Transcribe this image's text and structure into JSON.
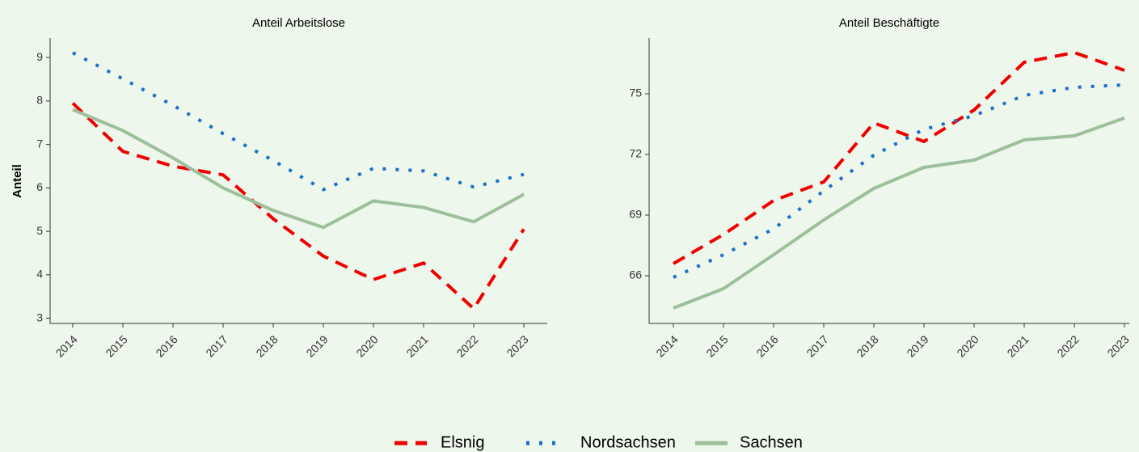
{
  "chart_data": [
    {
      "type": "line",
      "title": "Anteil Arbeitslose",
      "y_label": "Anteil",
      "categories": [
        "2014",
        "2015",
        "2016",
        "2017",
        "2018",
        "2019",
        "2020",
        "2021",
        "2022",
        "2023"
      ],
      "series": [
        {
          "name": "Elsnig",
          "color": "#ee0000",
          "linestyle": "dashed",
          "values": [
            7.95,
            6.84,
            6.5,
            6.3,
            5.29,
            4.43,
            3.89,
            4.27,
            3.22,
            5.05
          ]
        },
        {
          "name": "Nordsachsen",
          "color": "#1a6fc8",
          "linestyle": "dotted",
          "values": [
            9.11,
            8.51,
            7.9,
            7.25,
            6.63,
            5.96,
            6.45,
            6.39,
            6.02,
            6.31
          ]
        },
        {
          "name": "Sachsen",
          "color": "#9dbf9a",
          "linestyle": "solid",
          "values": [
            7.8,
            7.32,
            6.69,
            6.0,
            5.48,
            5.09,
            5.7,
            5.55,
            5.22,
            5.85
          ]
        }
      ],
      "ylim": [
        2.88,
        9.45
      ],
      "yticks": [
        3,
        4,
        5,
        6,
        7,
        8,
        9
      ]
    },
    {
      "type": "line",
      "title": "Anteil Beschäftigte",
      "categories": [
        "2014",
        "2015",
        "2016",
        "2017",
        "2018",
        "2019",
        "2020",
        "2021",
        "2022",
        "2023"
      ],
      "series": [
        {
          "name": "Elsnig",
          "color": "#ee0000",
          "linestyle": "dashed",
          "values": [
            66.6,
            68.04,
            69.72,
            70.64,
            73.56,
            72.64,
            74.2,
            76.56,
            77.04,
            76.16
          ]
        },
        {
          "name": "Nordsachsen",
          "color": "#1a6fc8",
          "linestyle": "dotted",
          "values": [
            65.92,
            67.04,
            68.32,
            70.2,
            71.96,
            73.24,
            73.92,
            74.92,
            75.32,
            75.44
          ]
        },
        {
          "name": "Sachsen",
          "color": "#9dbf9a",
          "linestyle": "solid",
          "values": [
            64.4,
            65.36,
            67.04,
            68.76,
            70.32,
            71.36,
            71.72,
            72.72,
            72.92,
            73.8
          ]
        }
      ],
      "ylim": [
        63.64,
        77.76
      ],
      "yticks": [
        66,
        69,
        72,
        75
      ]
    }
  ]
}
